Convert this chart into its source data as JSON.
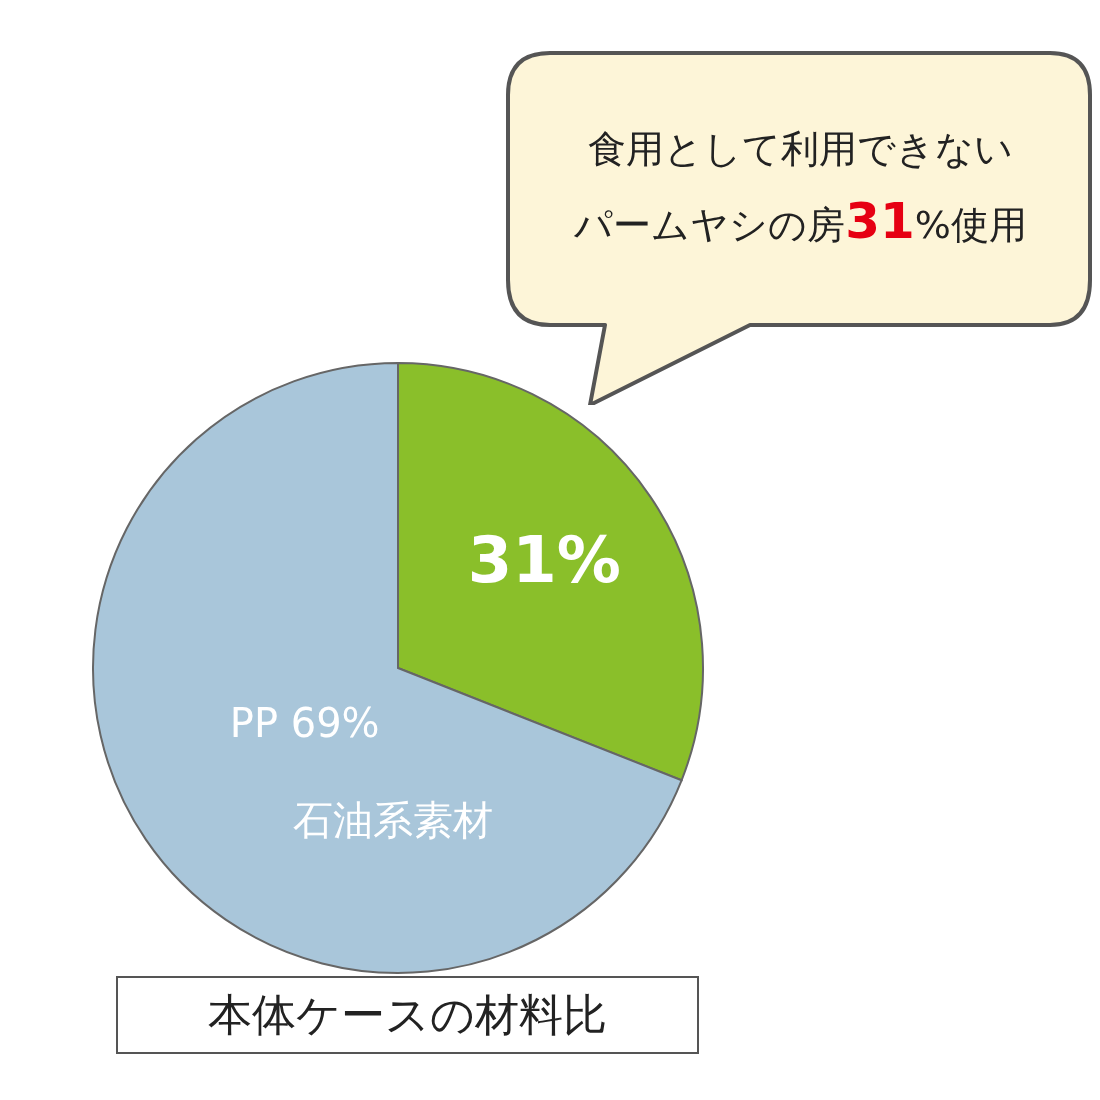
{
  "chart_data": {
    "type": "pie",
    "title": "本体ケースの材料比",
    "categories": [
      null,
      "PP"
    ],
    "values": [
      31,
      69
    ],
    "colors": [
      "#8abf2a",
      "#a9c6da"
    ],
    "value_labels": [
      "31%",
      "69%"
    ],
    "annotations": [
      "石油系素材",
      "食用として利用できない",
      "パームヤシの房31%使用"
    ]
  }
}
